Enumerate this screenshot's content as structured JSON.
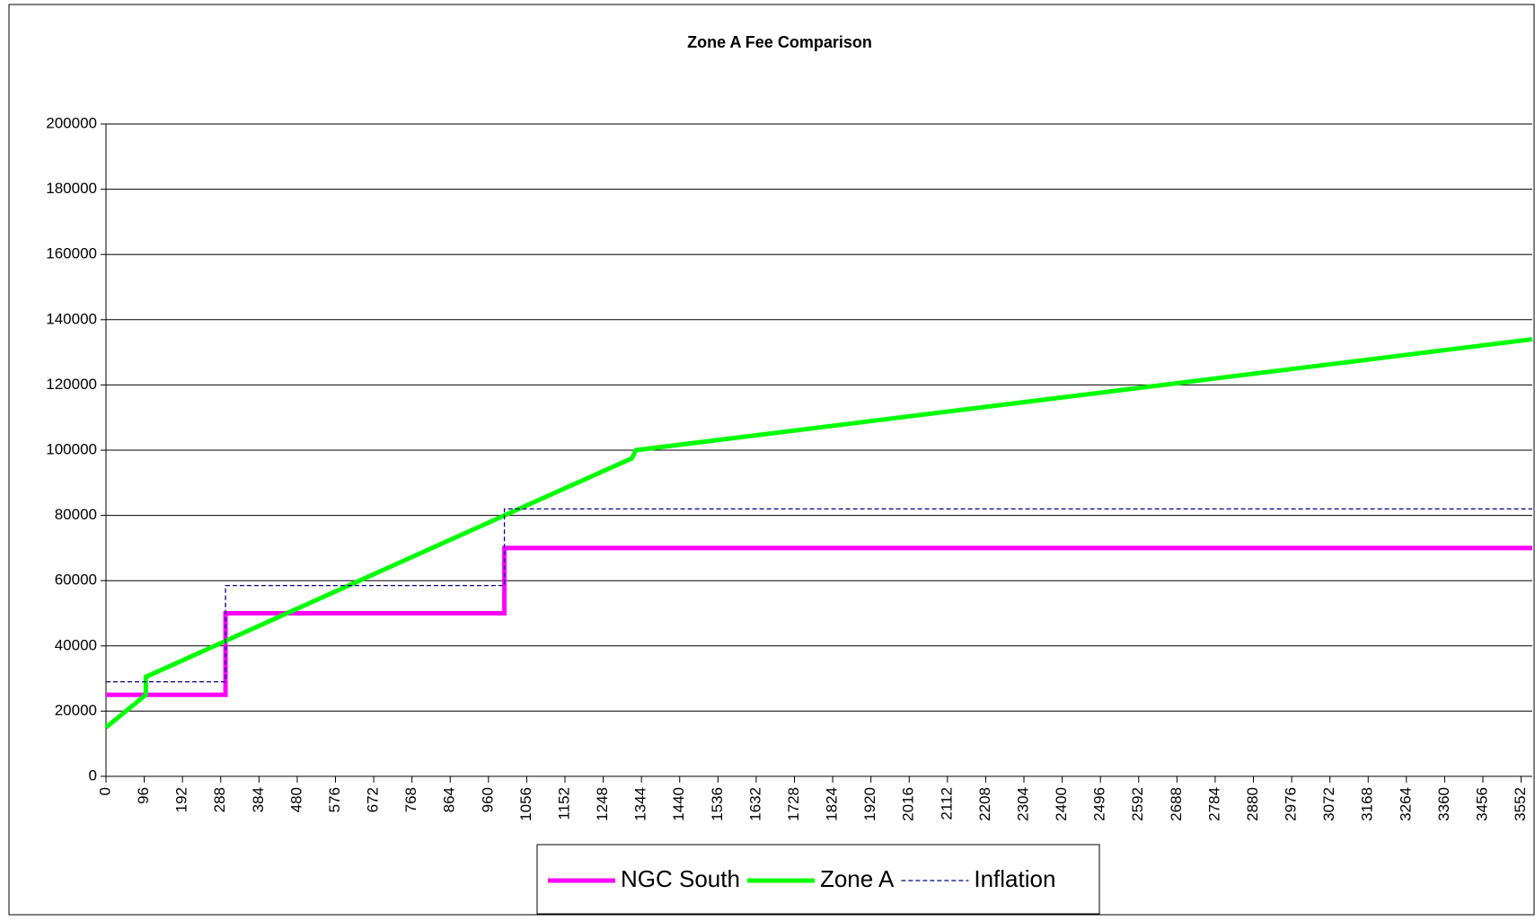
{
  "chart_data": {
    "type": "line",
    "title": "Zone A Fee Comparison",
    "xlim": [
      0,
      3580
    ],
    "xticks": [
      0,
      96,
      192,
      288,
      384,
      480,
      576,
      672,
      768,
      864,
      960,
      1056,
      1152,
      1248,
      1344,
      1440,
      1536,
      1632,
      1728,
      1824,
      1920,
      2016,
      2112,
      2208,
      2304,
      2400,
      2496,
      2592,
      2688,
      2784,
      2880,
      2976,
      3072,
      3168,
      3264,
      3360,
      3456,
      3552
    ],
    "ylim": [
      0,
      200000
    ],
    "yticks": [
      0,
      20000,
      40000,
      60000,
      80000,
      100000,
      120000,
      140000,
      160000,
      180000,
      200000
    ],
    "grid": true,
    "legend": "bottom",
    "series": [
      {
        "name": "NGC South",
        "color": "#ff00ff",
        "style": "solid",
        "x": [
          0,
          300,
          300,
          1000,
          1000,
          3580
        ],
        "values": [
          25000,
          25000,
          50000,
          50000,
          70000,
          70000
        ]
      },
      {
        "name": "Zone A",
        "color": "#00ff00",
        "style": "solid",
        "x": [
          0,
          100,
          100,
          1000,
          1320,
          1330,
          3580
        ],
        "values": [
          15000,
          25000,
          30500,
          80000,
          97500,
          100000,
          134000
        ]
      },
      {
        "name": "Inflation",
        "color": "#000080",
        "style": "dashed",
        "x": [
          0,
          300,
          300,
          1000,
          1000,
          3580
        ],
        "values": [
          29000,
          29000,
          58500,
          58500,
          82000,
          82000
        ]
      }
    ]
  }
}
